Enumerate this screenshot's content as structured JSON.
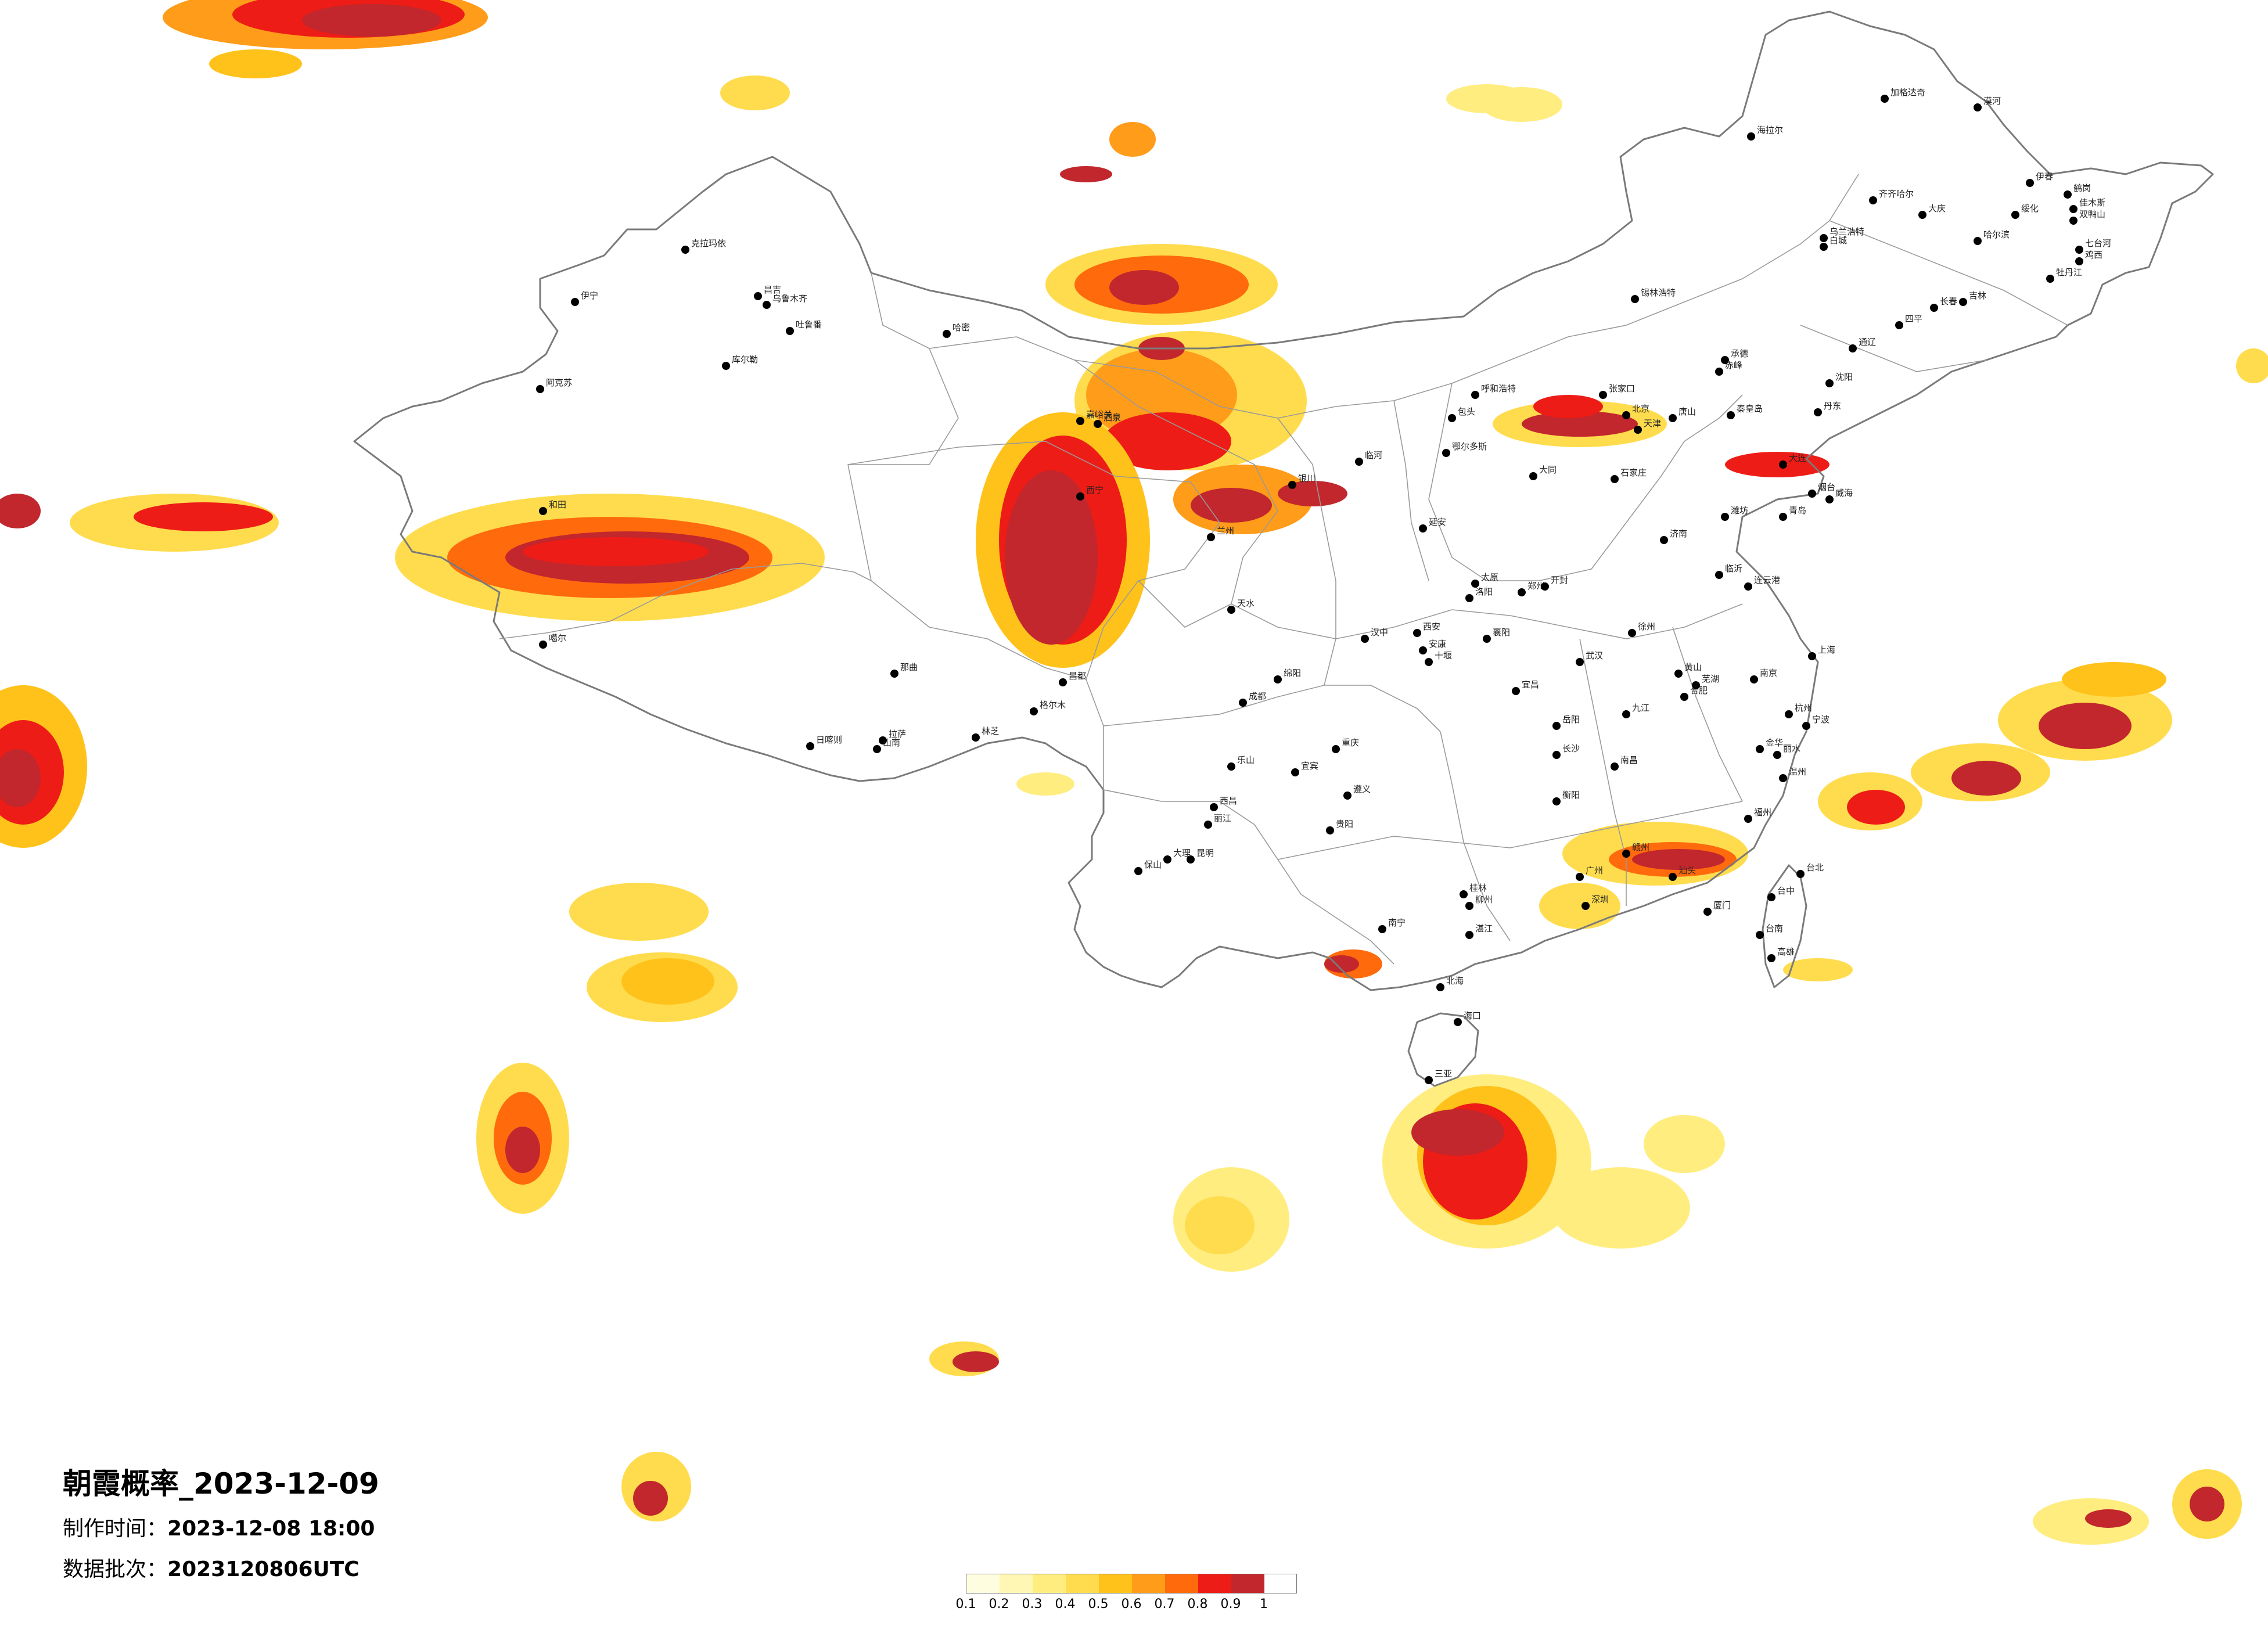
{
  "title": "朝霞概率_2023-12-09",
  "made_time": {
    "label": "制作时间：",
    "value": "2023-12-08 18:00"
  },
  "data_batch": {
    "label": "数据批次：",
    "value": "2023120806UTC"
  },
  "legend": {
    "ticks": [
      "0.1",
      "0.2",
      "0.3",
      "0.4",
      "0.5",
      "0.6",
      "0.7",
      "0.8",
      "0.9",
      "1"
    ],
    "colors": [
      "#fffde0",
      "#fff7b3",
      "#ffed80",
      "#ffdc4d",
      "#ffc21a",
      "#ff9c1a",
      "#ff6a0d",
      "#ee1c16",
      "#c1272d"
    ]
  },
  "cities": [
    {
      "name": "伊宁"
    },
    {
      "name": "克拉玛依"
    },
    {
      "name": "昌吉"
    },
    {
      "name": "乌鲁木齐"
    },
    {
      "name": "吐鲁番"
    },
    {
      "name": "哈密"
    },
    {
      "name": "库尔勒"
    },
    {
      "name": "阿克苏"
    },
    {
      "name": "和田"
    },
    {
      "name": "噶尔"
    },
    {
      "name": "日喀则"
    },
    {
      "name": "拉萨"
    },
    {
      "name": "山南"
    },
    {
      "name": "林芝"
    },
    {
      "name": "那曲"
    },
    {
      "name": "昌都"
    },
    {
      "name": "格尔木"
    },
    {
      "name": "嘉峪关"
    },
    {
      "name": "酒泉"
    },
    {
      "name": "西宁"
    },
    {
      "name": "兰州"
    },
    {
      "name": "银川"
    },
    {
      "name": "呼和浩特"
    },
    {
      "name": "包头"
    },
    {
      "name": "鄂尔多斯"
    },
    {
      "name": "临河"
    },
    {
      "name": "太原"
    },
    {
      "name": "大同"
    },
    {
      "name": "石家庄"
    },
    {
      "name": "北京"
    },
    {
      "name": "天津"
    },
    {
      "name": "张家口"
    },
    {
      "name": "唐山"
    },
    {
      "name": "秦皇岛"
    },
    {
      "name": "承德"
    },
    {
      "name": "赤峰"
    },
    {
      "name": "沈阳"
    },
    {
      "name": "大连"
    },
    {
      "name": "丹东"
    },
    {
      "name": "长春"
    },
    {
      "name": "吉林"
    },
    {
      "name": "四平"
    },
    {
      "name": "通辽"
    },
    {
      "name": "乌兰浩特"
    },
    {
      "name": "白城"
    },
    {
      "name": "哈尔滨"
    },
    {
      "name": "齐齐哈尔"
    },
    {
      "name": "大庆"
    },
    {
      "name": "绥化"
    },
    {
      "name": "伊春"
    },
    {
      "name": "鹤岗"
    },
    {
      "name": "佳木斯"
    },
    {
      "name": "双鸭山"
    },
    {
      "name": "七台河"
    },
    {
      "name": "鸡西"
    },
    {
      "name": "牡丹江"
    },
    {
      "name": "加格达奇"
    },
    {
      "name": "漠河"
    },
    {
      "name": "海拉尔"
    },
    {
      "name": "锡林浩特"
    },
    {
      "name": "济南"
    },
    {
      "name": "青岛"
    },
    {
      "name": "烟台"
    },
    {
      "name": "威海"
    },
    {
      "name": "潍坊"
    },
    {
      "name": "临沂"
    },
    {
      "name": "连云港"
    },
    {
      "name": "徐州"
    },
    {
      "name": "郑州"
    },
    {
      "name": "开封"
    },
    {
      "name": "洛阳"
    },
    {
      "name": "西安"
    },
    {
      "name": "延安"
    },
    {
      "name": "汉中"
    },
    {
      "name": "安康"
    },
    {
      "name": "天水"
    },
    {
      "name": "武汉"
    },
    {
      "name": "宜昌"
    },
    {
      "name": "襄阳"
    },
    {
      "name": "十堰"
    },
    {
      "name": "重庆"
    },
    {
      "name": "成都"
    },
    {
      "name": "绵阳"
    },
    {
      "name": "乐山"
    },
    {
      "name": "宜宾"
    },
    {
      "name": "西昌"
    },
    {
      "name": "贵阳"
    },
    {
      "name": "遵义"
    },
    {
      "name": "昆明"
    },
    {
      "name": "大理"
    },
    {
      "name": "保山"
    },
    {
      "name": "丽江"
    },
    {
      "name": "南宁"
    },
    {
      "name": "桂林"
    },
    {
      "name": "柳州"
    },
    {
      "name": "北海"
    },
    {
      "name": "长沙"
    },
    {
      "name": "岳阳"
    },
    {
      "name": "衡阳"
    },
    {
      "name": "南昌"
    },
    {
      "name": "九江"
    },
    {
      "name": "赣州"
    },
    {
      "name": "合肥"
    },
    {
      "name": "芜湖"
    },
    {
      "name": "南京"
    },
    {
      "name": "上海"
    },
    {
      "name": "杭州"
    },
    {
      "name": "宁波"
    },
    {
      "name": "温州"
    },
    {
      "name": "福州"
    },
    {
      "name": "厦门"
    },
    {
      "name": "广州"
    },
    {
      "name": "深圳"
    },
    {
      "name": "汕头"
    },
    {
      "name": "湛江"
    },
    {
      "name": "海口"
    },
    {
      "name": "三亚"
    },
    {
      "name": "台北"
    },
    {
      "name": "台中"
    },
    {
      "name": "高雄"
    },
    {
      "name": "台南"
    },
    {
      "name": "丽水"
    },
    {
      "name": "金华"
    },
    {
      "name": "黄山"
    }
  ]
}
